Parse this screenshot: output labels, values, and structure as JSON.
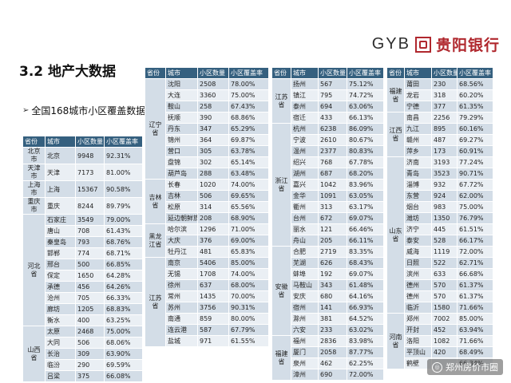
{
  "brand": {
    "latin": "GYB",
    "chinese": "贵阳银行"
  },
  "section_title": "3.2 地产大数据",
  "subtitle": "全国168城市小区覆盖数据",
  "headers": [
    "省份",
    "城市",
    "小区数量",
    "小区覆盖率"
  ],
  "table1": [
    {
      "prov": "北京市",
      "rowspan": 1,
      "rows": [
        [
          "北京",
          "9948",
          "92.31%"
        ]
      ]
    },
    {
      "prov": "天津市",
      "rowspan": 1,
      "rows": [
        [
          "天津",
          "7173",
          "81.00%"
        ]
      ]
    },
    {
      "prov": "上海市",
      "rowspan": 1,
      "rows": [
        [
          "上海",
          "15367",
          "90.58%"
        ]
      ]
    },
    {
      "prov": "重庆市",
      "rowspan": 1,
      "rows": [
        [
          "重庆",
          "8244",
          "89.79%"
        ]
      ]
    },
    {
      "prov": "河北省",
      "rows": [
        [
          "石家庄",
          "3549",
          "79.00%"
        ],
        [
          "唐山",
          "708",
          "61.43%"
        ],
        [
          "秦皇岛",
          "793",
          "68.76%"
        ],
        [
          "邯郸",
          "774",
          "68.71%"
        ],
        [
          "邢台",
          "500",
          "66.85%"
        ],
        [
          "保定",
          "1650",
          "64.28%"
        ],
        [
          "承德",
          "456",
          "64.26%"
        ],
        [
          "沧州",
          "705",
          "66.33%"
        ],
        [
          "廊坊",
          "1205",
          "68.83%"
        ],
        [
          "衡水",
          "400",
          "63.25%"
        ]
      ]
    },
    {
      "prov": "山西省",
      "rows": [
        [
          "太原",
          "2468",
          "75.00%"
        ],
        [
          "大同",
          "506",
          "68.06%"
        ],
        [
          "长治",
          "309",
          "63.90%"
        ],
        [
          "临汾",
          "290",
          "69.59%"
        ],
        [
          "吕梁",
          "375",
          "66.08%"
        ]
      ]
    }
  ],
  "table2": [
    {
      "prov": "辽宁省",
      "rows": [
        [
          "沈阳",
          "2508",
          "78.00%"
        ],
        [
          "大连",
          "3360",
          "75.00%"
        ],
        [
          "鞍山",
          "258",
          "67.43%"
        ],
        [
          "抚顺",
          "390",
          "68.86%"
        ],
        [
          "丹东",
          "347",
          "65.29%"
        ],
        [
          "锦州",
          "364",
          "69.87%"
        ],
        [
          "营口",
          "305",
          "63.78%"
        ],
        [
          "盘锦",
          "302",
          "65.14%"
        ],
        [
          "葫芦岛",
          "288",
          "63.48%"
        ]
      ]
    },
    {
      "prov": "吉林省",
      "rows": [
        [
          "长春",
          "1020",
          "74.00%"
        ],
        [
          "吉林",
          "506",
          "69.65%"
        ],
        [
          "松原",
          "314",
          "65.56%"
        ],
        [
          "延边朝鲜族自治州",
          "208",
          "68.90%"
        ]
      ]
    },
    {
      "prov": "黑龙江省",
      "rows": [
        [
          "哈尔滨",
          "1296",
          "71.00%"
        ],
        [
          "大庆",
          "376",
          "69.00%"
        ],
        [
          "牡丹江",
          "481",
          "65.83%"
        ]
      ]
    },
    {
      "prov": "江苏省",
      "rows": [
        [
          "南京",
          "5406",
          "85.00%"
        ],
        [
          "无锡",
          "1708",
          "74.00%"
        ],
        [
          "徐州",
          "637",
          "68.00%"
        ],
        [
          "常州",
          "1435",
          "70.00%"
        ],
        [
          "苏州",
          "3756",
          "90.31%"
        ],
        [
          "南通",
          "859",
          "80.00%"
        ],
        [
          "连云港",
          "587",
          "67.79%"
        ],
        [
          "盐城",
          "971",
          "61.55%"
        ]
      ]
    }
  ],
  "table3": [
    {
      "prov": "江苏省",
      "rows": [
        [
          "扬州",
          "567",
          "75.12%"
        ],
        [
          "镇江",
          "795",
          "74.72%"
        ],
        [
          "泰州",
          "694",
          "63.06%"
        ],
        [
          "宿迁",
          "433",
          "66.13%"
        ]
      ]
    },
    {
      "prov": "浙江省",
      "rows": [
        [
          "杭州",
          "6238",
          "86.09%"
        ],
        [
          "宁波",
          "2610",
          "80.67%"
        ],
        [
          "温州",
          "2377",
          "80.83%"
        ],
        [
          "绍兴",
          "768",
          "67.78%"
        ],
        [
          "湖州",
          "687",
          "68.20%"
        ],
        [
          "嘉兴",
          "1042",
          "83.96%"
        ],
        [
          "金华",
          "1091",
          "63.05%"
        ],
        [
          "衢州",
          "313",
          "63.17%"
        ],
        [
          "台州",
          "672",
          "69.07%"
        ],
        [
          "丽水",
          "121",
          "66.46%"
        ],
        [
          "舟山",
          "205",
          "66.11%"
        ]
      ]
    },
    {
      "prov": "安徽省",
      "rows": [
        [
          "合肥",
          "2719",
          "83.35%"
        ],
        [
          "芜湖",
          "626",
          "68.43%"
        ],
        [
          "蚌埠",
          "192",
          "69.07%"
        ],
        [
          "马鞍山",
          "343",
          "61.48%"
        ],
        [
          "安庆",
          "680",
          "64.16%"
        ],
        [
          "宿州",
          "141",
          "66.93%"
        ],
        [
          "滁州",
          "381",
          "64.52%"
        ],
        [
          "六安",
          "233",
          "63.02%"
        ]
      ]
    },
    {
      "prov": "福建省",
      "rows": [
        [
          "福州",
          "2836",
          "83.98%"
        ],
        [
          "厦门",
          "2058",
          "87.77%"
        ],
        [
          "泉州",
          "462",
          "62.25%"
        ],
        [
          "漳州",
          "690",
          "72.00%"
        ]
      ]
    }
  ],
  "table4": [
    {
      "prov": "福建省",
      "rows": [
        [
          "莆田",
          "230",
          "68.56%"
        ],
        [
          "龙岩",
          "318",
          "60.20%"
        ],
        [
          "宁德",
          "377",
          "61.35%"
        ]
      ]
    },
    {
      "prov": "江西省",
      "rows": [
        [
          "南昌",
          "2256",
          "79.29%"
        ],
        [
          "九江",
          "895",
          "60.16%"
        ],
        [
          "赣州",
          "487",
          "69.27%"
        ],
        [
          "萍乡",
          "173",
          "60.91%"
        ]
      ]
    },
    {
      "prov": "山东省",
      "rows": [
        [
          "济南",
          "3193",
          "77.24%"
        ],
        [
          "青岛",
          "3523",
          "90.71%"
        ],
        [
          "淄博",
          "932",
          "67.72%"
        ],
        [
          "东营",
          "924",
          "62.00%"
        ],
        [
          "烟台",
          "983",
          "75.00%"
        ],
        [
          "潍坊",
          "1350",
          "76.79%"
        ],
        [
          "济宁",
          "445",
          "61.51%"
        ],
        [
          "泰安",
          "528",
          "66.17%"
        ],
        [
          "威海",
          "1119",
          "72.00%"
        ],
        [
          "日照",
          "522",
          "62.71%"
        ],
        [
          "滨州",
          "633",
          "66.68%"
        ],
        [
          "德州",
          "570",
          "61.37%"
        ],
        [
          "德州",
          "570",
          "61.37%"
        ],
        [
          "临沂",
          "1580",
          "71.66%"
        ]
      ]
    },
    {
      "prov": "河南省",
      "rows": [
        [
          "郑州",
          "7002",
          "85.00%"
        ],
        [
          "开封",
          "452",
          "63.94%"
        ],
        [
          "洛阳",
          "1082",
          "71.66%"
        ],
        [
          "平顶山",
          "420",
          "68.49%"
        ],
        [
          "鹤壁",
          "",
          "66.34%"
        ]
      ]
    }
  ],
  "watermark": "郑州房价市圈"
}
